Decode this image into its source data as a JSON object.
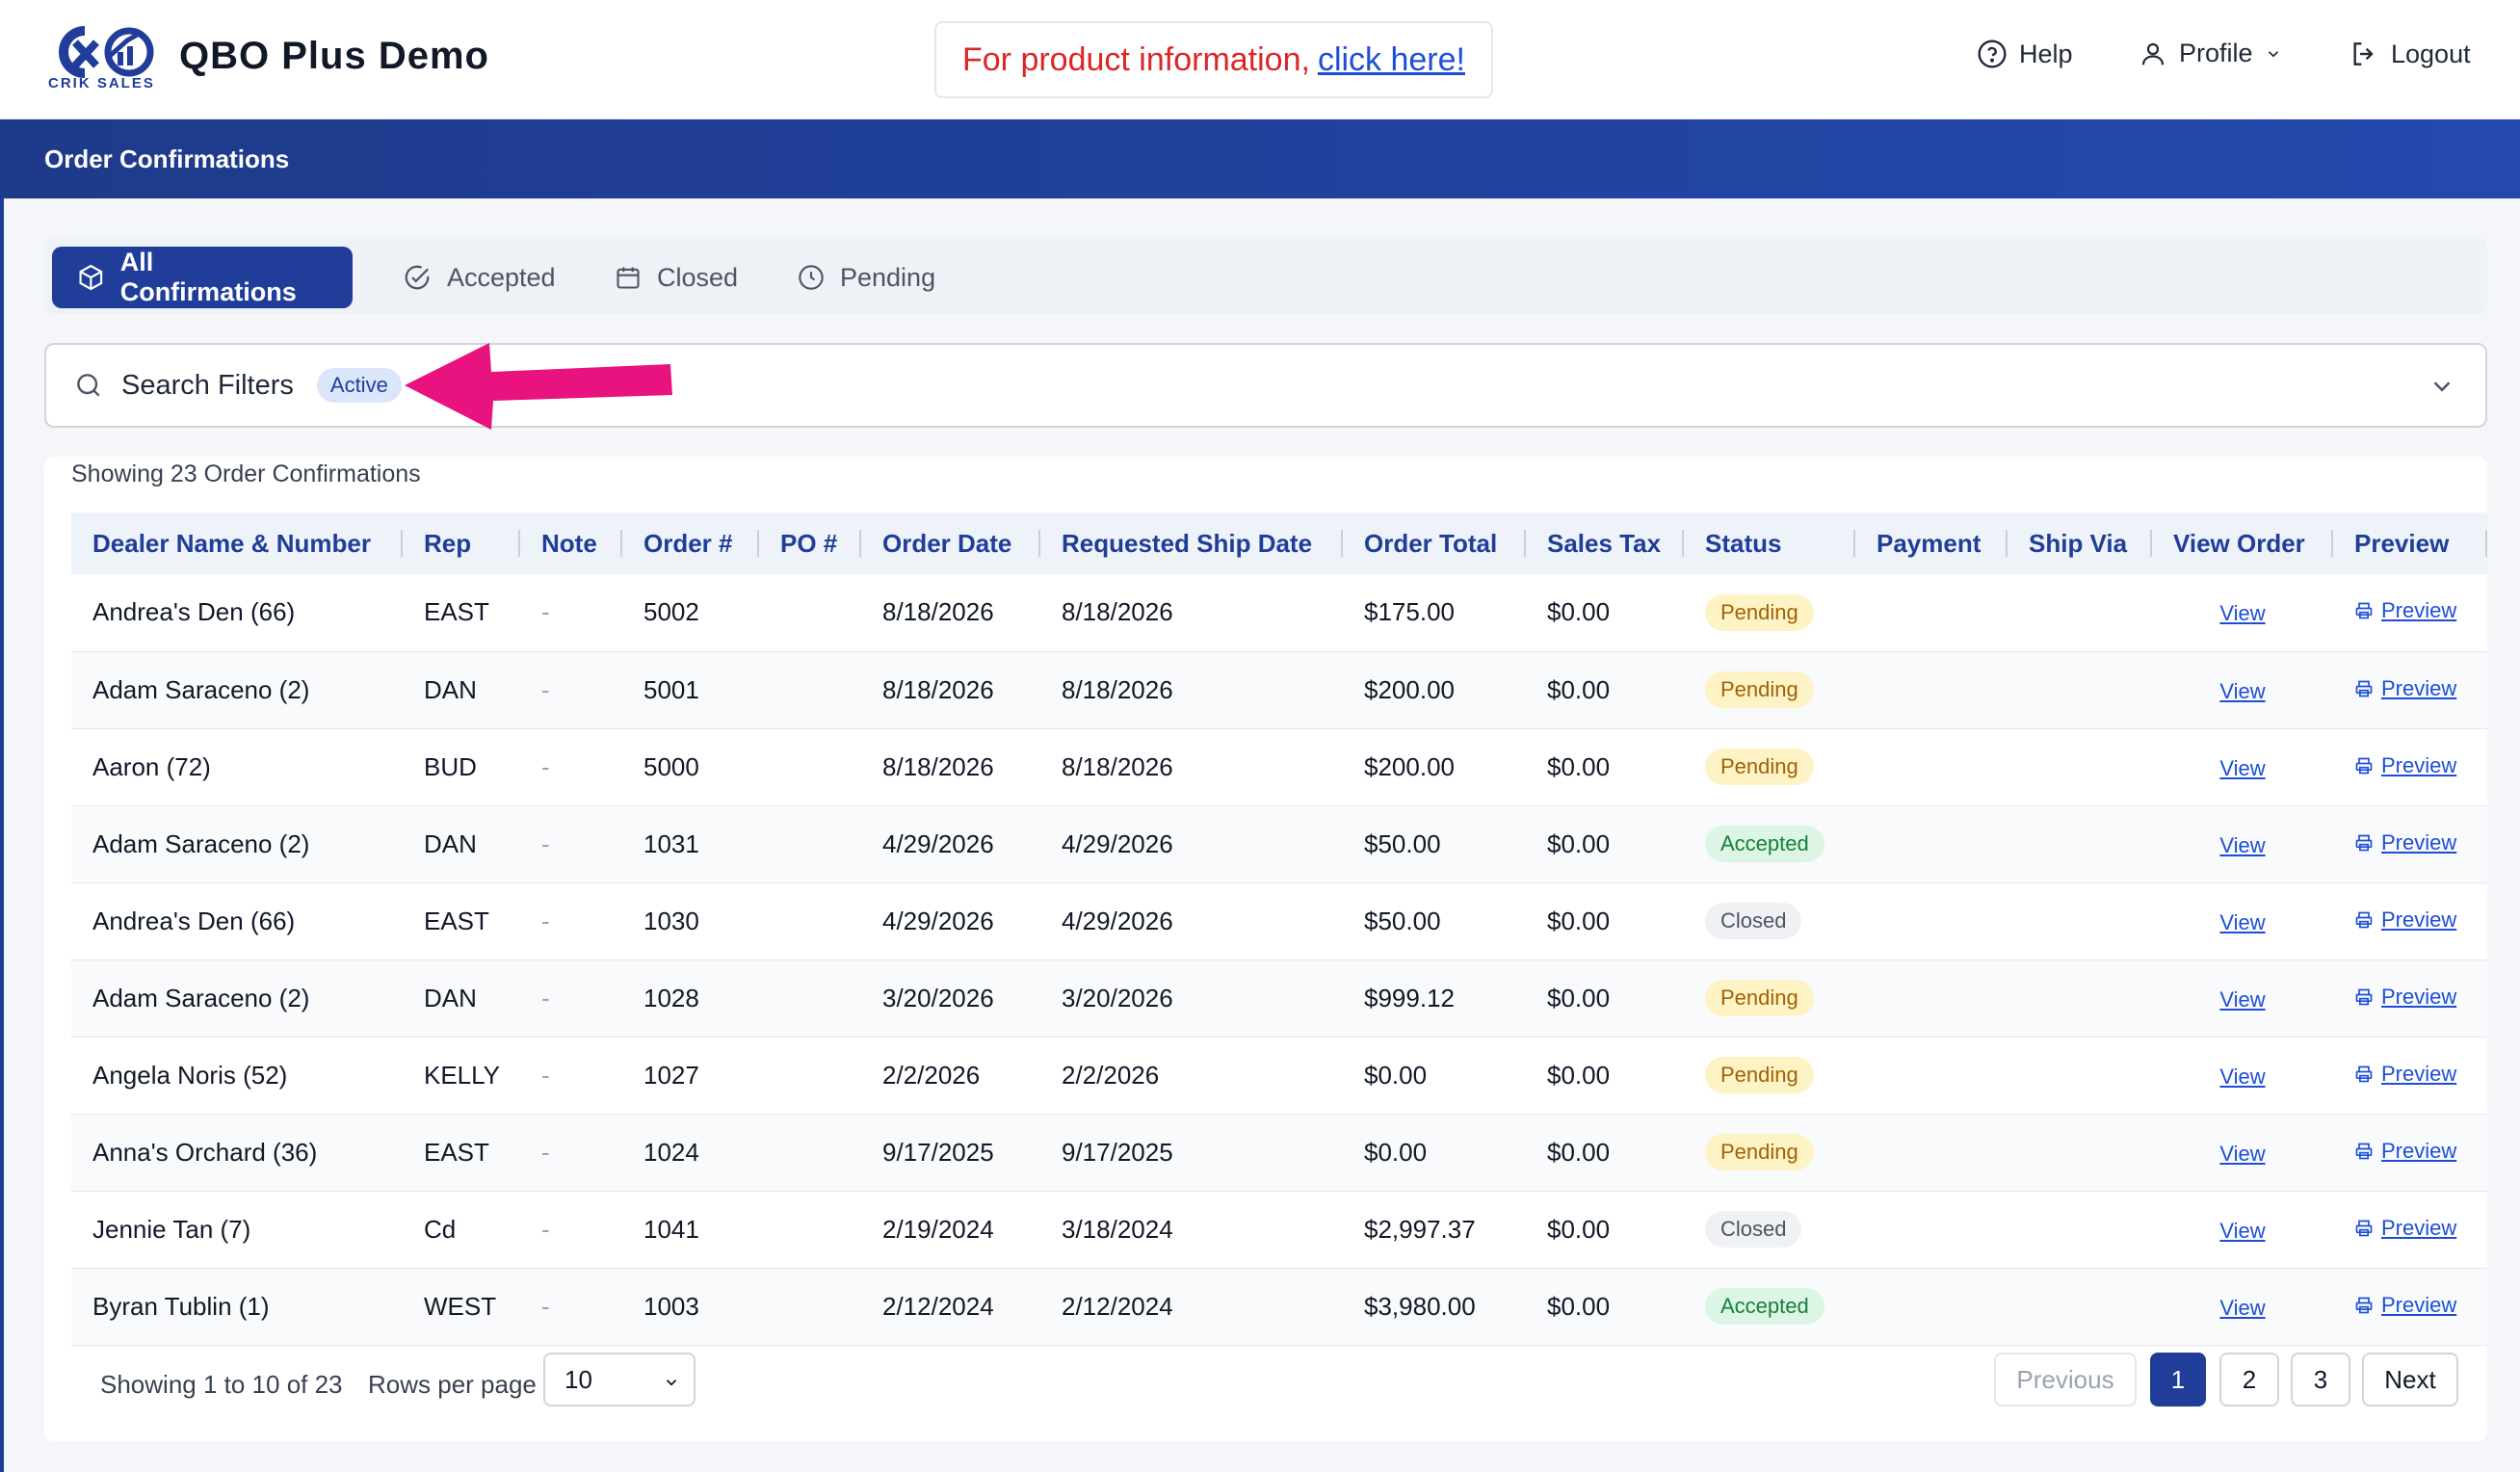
{
  "app": {
    "logo_text": "CRIK SALES",
    "title": "QBO Plus Demo",
    "promo_text": "For product information,",
    "promo_link": "click here!"
  },
  "nav": {
    "help": "Help",
    "profile": "Profile",
    "logout": "Logout"
  },
  "banner": {
    "title": "Order Confirmations"
  },
  "tabs": [
    {
      "label": "All Confirmations",
      "icon": "cube-icon",
      "active": true
    },
    {
      "label": "Accepted",
      "icon": "check-circle-icon",
      "active": false
    },
    {
      "label": "Closed",
      "icon": "calendar-icon",
      "active": false
    },
    {
      "label": "Pending",
      "icon": "clock-icon",
      "active": false
    }
  ],
  "filters": {
    "label": "Search Filters",
    "badge": "Active"
  },
  "table": {
    "summary": "Showing 23 Order Confirmations",
    "columns": [
      "Dealer Name & Number",
      "Rep",
      "Note",
      "Order #",
      "PO #",
      "Order Date",
      "Requested Ship Date",
      "Order Total",
      "Sales Tax",
      "Status",
      "Payment",
      "Ship Via",
      "View Order",
      "Preview"
    ],
    "rows": [
      {
        "dealer": "Andrea's Den (66)",
        "rep": "EAST",
        "note": "-",
        "order": "5002",
        "po": "",
        "order_date": "8/18/2026",
        "ship_date": "8/18/2026",
        "total": "$175.00",
        "tax": "$0.00",
        "status": "Pending",
        "payment": "",
        "ship_via": "",
        "view": "View",
        "preview": "Preview"
      },
      {
        "dealer": "Adam Saraceno (2)",
        "rep": "DAN",
        "note": "-",
        "order": "5001",
        "po": "",
        "order_date": "8/18/2026",
        "ship_date": "8/18/2026",
        "total": "$200.00",
        "tax": "$0.00",
        "status": "Pending",
        "payment": "",
        "ship_via": "",
        "view": "View",
        "preview": "Preview"
      },
      {
        "dealer": "Aaron (72)",
        "rep": "BUD",
        "note": "-",
        "order": "5000",
        "po": "",
        "order_date": "8/18/2026",
        "ship_date": "8/18/2026",
        "total": "$200.00",
        "tax": "$0.00",
        "status": "Pending",
        "payment": "",
        "ship_via": "",
        "view": "View",
        "preview": "Preview"
      },
      {
        "dealer": "Adam Saraceno (2)",
        "rep": "DAN",
        "note": "-",
        "order": "1031",
        "po": "",
        "order_date": "4/29/2026",
        "ship_date": "4/29/2026",
        "total": "$50.00",
        "tax": "$0.00",
        "status": "Accepted",
        "payment": "",
        "ship_via": "",
        "view": "View",
        "preview": "Preview"
      },
      {
        "dealer": "Andrea's Den (66)",
        "rep": "EAST",
        "note": "-",
        "order": "1030",
        "po": "",
        "order_date": "4/29/2026",
        "ship_date": "4/29/2026",
        "total": "$50.00",
        "tax": "$0.00",
        "status": "Closed",
        "payment": "",
        "ship_via": "",
        "view": "View",
        "preview": "Preview"
      },
      {
        "dealer": "Adam Saraceno (2)",
        "rep": "DAN",
        "note": "-",
        "order": "1028",
        "po": "",
        "order_date": "3/20/2026",
        "ship_date": "3/20/2026",
        "total": "$999.12",
        "tax": "$0.00",
        "status": "Pending",
        "payment": "",
        "ship_via": "",
        "view": "View",
        "preview": "Preview"
      },
      {
        "dealer": "Angela Noris (52)",
        "rep": "KELLY",
        "note": "-",
        "order": "1027",
        "po": "",
        "order_date": "2/2/2026",
        "ship_date": "2/2/2026",
        "total": "$0.00",
        "tax": "$0.00",
        "status": "Pending",
        "payment": "",
        "ship_via": "",
        "view": "View",
        "preview": "Preview"
      },
      {
        "dealer": "Anna's Orchard (36)",
        "rep": "EAST",
        "note": "-",
        "order": "1024",
        "po": "",
        "order_date": "9/17/2025",
        "ship_date": "9/17/2025",
        "total": "$0.00",
        "tax": "$0.00",
        "status": "Pending",
        "payment": "",
        "ship_via": "",
        "view": "View",
        "preview": "Preview"
      },
      {
        "dealer": "Jennie Tan (7)",
        "rep": "Cd",
        "note": "-",
        "order": "1041",
        "po": "",
        "order_date": "2/19/2024",
        "ship_date": "3/18/2024",
        "total": "$2,997.37",
        "tax": "$0.00",
        "status": "Closed",
        "payment": "",
        "ship_via": "",
        "view": "View",
        "preview": "Preview"
      },
      {
        "dealer": "Byran Tublin (1)",
        "rep": "WEST",
        "note": "-",
        "order": "1003",
        "po": "",
        "order_date": "2/12/2024",
        "ship_date": "2/12/2024",
        "total": "$3,980.00",
        "tax": "$0.00",
        "status": "Accepted",
        "payment": "",
        "ship_via": "",
        "view": "View",
        "preview": "Preview"
      }
    ]
  },
  "footer": {
    "showing": "Showing 1 to 10 of 23",
    "rows_label": "Rows per page",
    "rows_value": "10",
    "previous": "Previous",
    "pages": [
      "1",
      "2",
      "3"
    ],
    "current_page": "1",
    "next": "Next"
  },
  "colors": {
    "brand": "#1f3d99",
    "pending": "#a16207",
    "accepted": "#15803d",
    "closed": "#4b5563",
    "annotation_arrow": "#e8137e"
  }
}
